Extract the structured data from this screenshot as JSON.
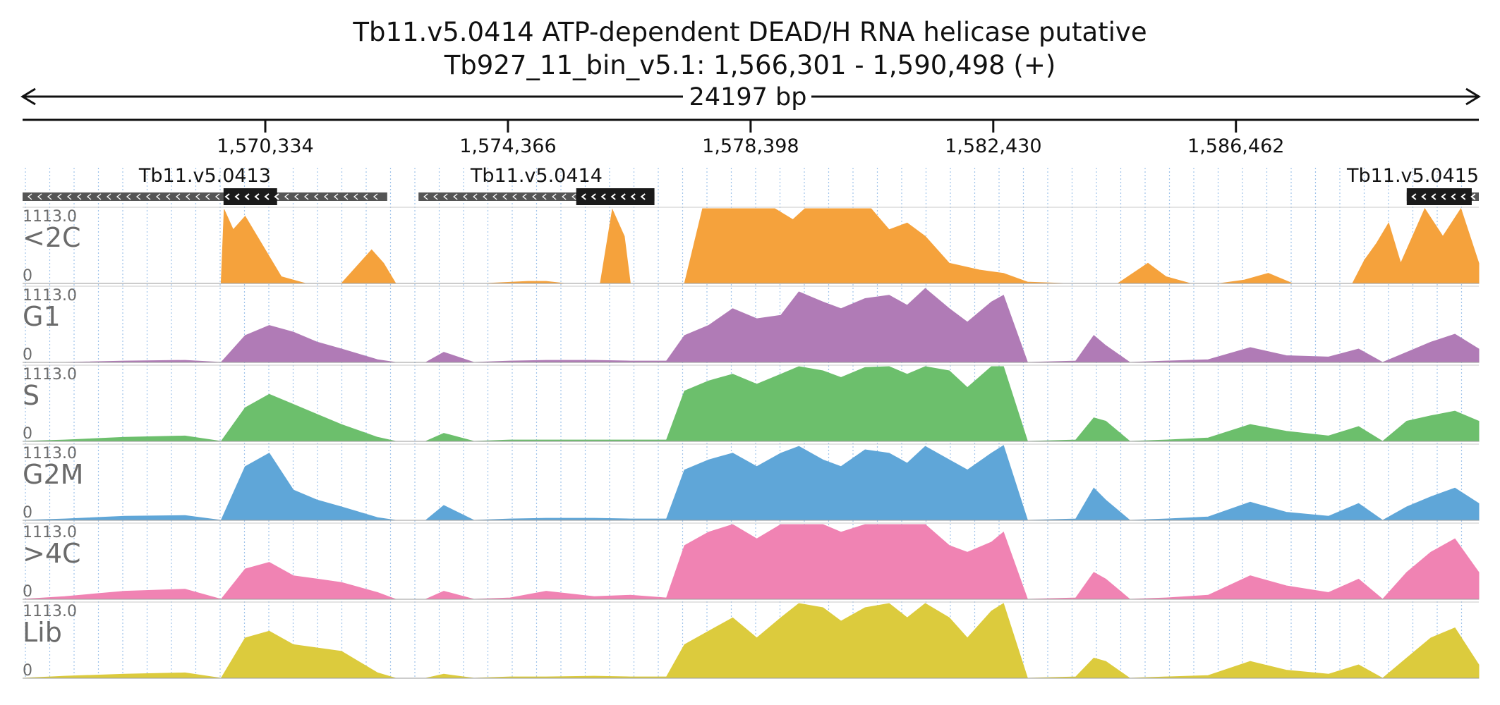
{
  "chart_data": {
    "type": "area",
    "title": "Tb11.v5.0414  ATP-dependent DEAD/H RNA helicase  putative",
    "subtitle": "Tb927_11_bin_v5.1: 1,566,301 - 1,590,498 (+)",
    "span_label": "24197 bp",
    "x_range": [
      1566301,
      1590498
    ],
    "x_ticks": [
      {
        "value": 1570334,
        "label": "1,570,334"
      },
      {
        "value": 1574366,
        "label": "1,574,366"
      },
      {
        "value": 1578398,
        "label": "1,578,398"
      },
      {
        "value": 1582430,
        "label": "1,582,430"
      },
      {
        "value": 1586462,
        "label": "1,586,462"
      }
    ],
    "genes": [
      {
        "name": "Tb11.v5.0413",
        "start": 1566301,
        "end": 1572360,
        "cds_start": 1569640,
        "cds_end": 1570530,
        "strand": "-"
      },
      {
        "name": "Tb11.v5.0414",
        "start": 1572880,
        "end": 1576800,
        "cds_start": 1575500,
        "cds_end": 1576800,
        "strand": "-"
      },
      {
        "name": "Tb11.v5.0415",
        "start": 1589300,
        "end": 1590498,
        "cds_start": 1589300,
        "cds_end": 1590380,
        "strand": "-"
      }
    ],
    "y_range": [
      0,
      1113.0
    ],
    "y_max_label": "1113.0",
    "y_min_label": "0",
    "series": [
      {
        "name": "<2C",
        "color": "#f5a23c",
        "x": [
          1566301,
          1567000,
          1568000,
          1569000,
          1569600,
          1569650,
          1569800,
          1570000,
          1570300,
          1570600,
          1571000,
          1571600,
          1571950,
          1572100,
          1572300,
          1572500,
          1573000,
          1574000,
          1574700,
          1575000,
          1575300,
          1575500,
          1575700,
          1575900,
          1576100,
          1576300,
          1576400,
          1577000,
          1577200,
          1577300,
          1577600,
          1578000,
          1578400,
          1578800,
          1579100,
          1579300,
          1579600,
          1579900,
          1580100,
          1580400,
          1580700,
          1581000,
          1581300,
          1581700,
          1582200,
          1582600,
          1583000,
          1583600,
          1584200,
          1584500,
          1585000,
          1585300,
          1585700,
          1586200,
          1586600,
          1587000,
          1587400,
          1587800,
          1588200,
          1588400,
          1588600,
          1588800,
          1589000,
          1589200,
          1589600,
          1589900,
          1590200,
          1590498
        ],
        "values": [
          0,
          0,
          0,
          0,
          0,
          1100,
          800,
          1000,
          550,
          100,
          0,
          0,
          350,
          500,
          300,
          0,
          0,
          0,
          30,
          30,
          0,
          0,
          0,
          0,
          1100,
          700,
          0,
          0,
          0,
          0,
          1113,
          1113,
          1113,
          1113,
          950,
          1113,
          1113,
          1113,
          1113,
          1113,
          800,
          900,
          700,
          300,
          200,
          150,
          20,
          0,
          0,
          0,
          300,
          100,
          0,
          0,
          50,
          150,
          0,
          0,
          0,
          0,
          350,
          600,
          900,
          300,
          1113,
          700,
          1113,
          300
        ]
      },
      {
        "name": "G1",
        "color": "#b07bb6",
        "x": [
          1566301,
          1567000,
          1568000,
          1569000,
          1569600,
          1570000,
          1570400,
          1570800,
          1571200,
          1571600,
          1572200,
          1572500,
          1573000,
          1573300,
          1573800,
          1574400,
          1575000,
          1575800,
          1576400,
          1577000,
          1577300,
          1577700,
          1578100,
          1578500,
          1578900,
          1579200,
          1579600,
          1579900,
          1580300,
          1580700,
          1581000,
          1581300,
          1581700,
          1582000,
          1582400,
          1582600,
          1583000,
          1583800,
          1584100,
          1584300,
          1584700,
          1585300,
          1586000,
          1586700,
          1587300,
          1588000,
          1588500,
          1588900,
          1589300,
          1589700,
          1590100,
          1590498
        ],
        "values": [
          0,
          0,
          20,
          30,
          0,
          400,
          550,
          450,
          300,
          200,
          40,
          0,
          0,
          150,
          0,
          20,
          30,
          30,
          20,
          20,
          400,
          550,
          800,
          650,
          700,
          1050,
          900,
          800,
          950,
          1000,
          850,
          1100,
          800,
          600,
          900,
          1000,
          0,
          20,
          400,
          250,
          0,
          20,
          40,
          220,
          100,
          80,
          200,
          0,
          150,
          300,
          420,
          200
        ]
      },
      {
        "name": "S",
        "color": "#6cbf6c",
        "x": [
          1566301,
          1567000,
          1568000,
          1569000,
          1569600,
          1570000,
          1570400,
          1570800,
          1571200,
          1571600,
          1572200,
          1572500,
          1573000,
          1573300,
          1573800,
          1574400,
          1575000,
          1575800,
          1576400,
          1577000,
          1577300,
          1577700,
          1578100,
          1578500,
          1578900,
          1579200,
          1579600,
          1579900,
          1580300,
          1580700,
          1581000,
          1581300,
          1581700,
          1582000,
          1582400,
          1582600,
          1583000,
          1583800,
          1584100,
          1584300,
          1584700,
          1585300,
          1586000,
          1586700,
          1587300,
          1588000,
          1588500,
          1588900,
          1589300,
          1589700,
          1590100,
          1590498
        ],
        "values": [
          0,
          20,
          60,
          80,
          0,
          500,
          700,
          550,
          400,
          250,
          60,
          0,
          0,
          120,
          0,
          20,
          20,
          20,
          20,
          20,
          750,
          900,
          1000,
          850,
          1000,
          1113,
          1050,
          950,
          1100,
          1113,
          1000,
          1113,
          1050,
          800,
          1113,
          1113,
          0,
          20,
          350,
          300,
          0,
          20,
          50,
          250,
          150,
          80,
          220,
          0,
          300,
          380,
          450,
          300
        ]
      },
      {
        "name": "G2M",
        "color": "#5fa6d8",
        "x": [
          1566301,
          1567000,
          1568000,
          1569000,
          1569600,
          1570000,
          1570400,
          1570800,
          1571200,
          1571600,
          1572200,
          1572500,
          1573000,
          1573300,
          1573800,
          1574400,
          1575000,
          1575800,
          1576400,
          1577000,
          1577300,
          1577700,
          1578100,
          1578500,
          1578900,
          1579200,
          1579600,
          1579900,
          1580300,
          1580700,
          1581000,
          1581300,
          1581700,
          1582000,
          1582400,
          1582600,
          1583000,
          1583800,
          1584100,
          1584300,
          1584700,
          1585300,
          1586000,
          1586700,
          1587300,
          1588000,
          1588500,
          1588900,
          1589300,
          1589700,
          1590100,
          1590498
        ],
        "values": [
          0,
          20,
          60,
          70,
          0,
          800,
          1000,
          450,
          300,
          200,
          40,
          0,
          0,
          220,
          0,
          20,
          30,
          30,
          20,
          20,
          750,
          900,
          1000,
          800,
          1000,
          1100,
          900,
          800,
          1050,
          1000,
          850,
          1100,
          900,
          750,
          1000,
          1113,
          0,
          20,
          480,
          300,
          0,
          20,
          50,
          270,
          120,
          60,
          250,
          0,
          200,
          350,
          480,
          250
        ]
      },
      {
        "name": ">4C",
        "color": "#f083b3",
        "x": [
          1566301,
          1567000,
          1568000,
          1569000,
          1569600,
          1570000,
          1570400,
          1570800,
          1571200,
          1571600,
          1572200,
          1572500,
          1573000,
          1573300,
          1573800,
          1574400,
          1575000,
          1575800,
          1576400,
          1577000,
          1577300,
          1577700,
          1578100,
          1578500,
          1578900,
          1579200,
          1579600,
          1579900,
          1580300,
          1580700,
          1581000,
          1581300,
          1581700,
          1582000,
          1582400,
          1582600,
          1583000,
          1583800,
          1584100,
          1584300,
          1584700,
          1585300,
          1586000,
          1586700,
          1587300,
          1588000,
          1588500,
          1588900,
          1589300,
          1589700,
          1590100,
          1590498
        ],
        "values": [
          0,
          40,
          120,
          150,
          0,
          450,
          550,
          350,
          300,
          250,
          100,
          0,
          0,
          120,
          0,
          20,
          120,
          40,
          60,
          20,
          800,
          1000,
          1113,
          900,
          1113,
          1113,
          1113,
          1000,
          1113,
          1113,
          1113,
          1113,
          800,
          700,
          850,
          1000,
          0,
          20,
          400,
          300,
          0,
          20,
          60,
          350,
          200,
          100,
          300,
          0,
          400,
          700,
          900,
          400
        ]
      },
      {
        "name": "Lib",
        "color": "#dccb3d",
        "x": [
          1566301,
          1567000,
          1568000,
          1569000,
          1569600,
          1570000,
          1570400,
          1570800,
          1571200,
          1571600,
          1572200,
          1572500,
          1573000,
          1573300,
          1573800,
          1574400,
          1575000,
          1575800,
          1576400,
          1577000,
          1577300,
          1577700,
          1578100,
          1578500,
          1578900,
          1579200,
          1579600,
          1579900,
          1580300,
          1580700,
          1581000,
          1581300,
          1581700,
          1582000,
          1582400,
          1582600,
          1583000,
          1583800,
          1584100,
          1584300,
          1584700,
          1585300,
          1586000,
          1586700,
          1587300,
          1588000,
          1588500,
          1588900,
          1589300,
          1589700,
          1590100,
          1590498
        ],
        "values": [
          0,
          30,
          60,
          80,
          0,
          600,
          700,
          500,
          450,
          400,
          80,
          0,
          0,
          60,
          0,
          20,
          20,
          30,
          20,
          20,
          500,
          700,
          900,
          600,
          900,
          1113,
          1050,
          850,
          1050,
          1113,
          900,
          1113,
          900,
          600,
          1000,
          1113,
          0,
          20,
          300,
          250,
          0,
          20,
          40,
          250,
          120,
          60,
          200,
          0,
          300,
          600,
          750,
          200
        ]
      }
    ]
  }
}
